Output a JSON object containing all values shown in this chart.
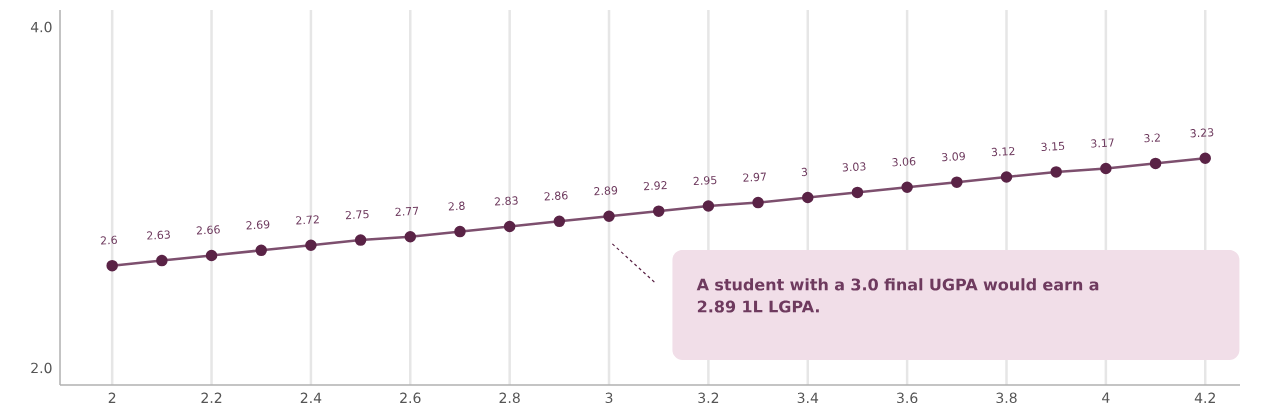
{
  "chart_data": {
    "type": "line",
    "x": [
      2,
      2.1,
      2.2,
      2.3,
      2.4,
      2.5,
      2.6,
      2.7,
      2.8,
      2.9,
      3,
      3.1,
      3.2,
      3.3,
      3.4,
      3.5,
      3.6,
      3.7,
      3.8,
      3.9,
      4,
      4.1,
      4.2
    ],
    "values": [
      2.6,
      2.63,
      2.66,
      2.69,
      2.72,
      2.75,
      2.77,
      2.8,
      2.83,
      2.86,
      2.89,
      2.92,
      2.95,
      2.97,
      3,
      3.03,
      3.06,
      3.09,
      3.12,
      3.15,
      3.17,
      3.2,
      3.23
    ],
    "color": "#7d4f6e",
    "marker": "circle",
    "line_style": "solid",
    "data_labels": true,
    "grid": "x",
    "xlim": [
      1.895,
      4.27
    ],
    "ylim": [
      1.9,
      4.1
    ],
    "xticks": [
      2,
      2.2,
      2.4,
      2.6,
      2.8,
      3,
      3.2,
      3.4,
      3.6,
      3.8,
      4,
      4.2
    ],
    "yticks": [
      {
        "value": 2,
        "label": "2.0"
      },
      {
        "value": 4,
        "label": "4.0"
      }
    ],
    "annotations": [
      "A student with a 3.0 final UGPA would earn a 2.89 1L LGPA."
    ]
  }
}
